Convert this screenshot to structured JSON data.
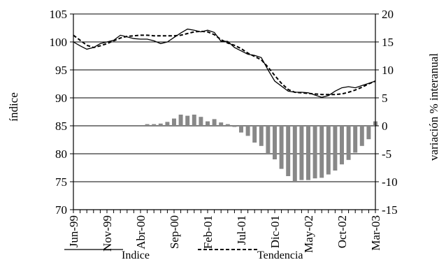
{
  "chart_data": {
    "type": "line",
    "title": "",
    "left_axis": {
      "label": "índice",
      "ylim": [
        70,
        105
      ],
      "ticks": [
        70,
        75,
        80,
        85,
        90,
        95,
        100,
        105
      ]
    },
    "right_axis": {
      "label": "variación % interanual",
      "ylim": [
        -15,
        20
      ],
      "ticks": [
        -15,
        -10,
        -5,
        0,
        5,
        10,
        15,
        20
      ]
    },
    "grid": true,
    "legend_position": "bottom",
    "x_tick_labels": [
      "Jun-99",
      "Nov-99",
      "Abr-00",
      "Sep-00",
      "Feb-01",
      "Jul-01",
      "Dic-01",
      "May-02",
      "Oct-02",
      "Mar-03"
    ],
    "months": [
      "Jun-99",
      "Jul-99",
      "Aug-99",
      "Sep-99",
      "Oct-99",
      "Nov-99",
      "Dec-99",
      "Jan-00",
      "Feb-00",
      "Mar-00",
      "Abr-00",
      "May-00",
      "Jun-00",
      "Jul-00",
      "Aug-00",
      "Sep-00",
      "Oct-00",
      "Nov-00",
      "Dec-00",
      "Jan-01",
      "Feb-01",
      "Mar-01",
      "Apr-01",
      "May-01",
      "Jun-01",
      "Jul-01",
      "Aug-01",
      "Sep-01",
      "Oct-01",
      "Nov-01",
      "Dic-01",
      "Jan-02",
      "Feb-02",
      "Mar-02",
      "Apr-02",
      "May-02",
      "Jun-02",
      "Jul-02",
      "Aug-02",
      "Sep-02",
      "Oct-02",
      "Nov-02",
      "Dec-02",
      "Jan-03",
      "Feb-03",
      "Mar-03"
    ],
    "series": [
      {
        "name": "Indice",
        "axis": "left",
        "style": "solid",
        "color": "#000000",
        "values": [
          100.0,
          99.3,
          98.7,
          99.0,
          99.7,
          100.0,
          100.3,
          101.2,
          100.9,
          100.6,
          100.5,
          100.5,
          100.2,
          99.7,
          100.0,
          100.8,
          101.6,
          102.3,
          102.1,
          101.8,
          102.1,
          101.7,
          100.1,
          100.1,
          99.0,
          98.4,
          97.8,
          97.6,
          97.2,
          95.0,
          93.0,
          92.1,
          91.2,
          91.0,
          91.0,
          90.9,
          90.5,
          90.1,
          90.4,
          91.2,
          91.8,
          92.0,
          91.8,
          92.2,
          92.6,
          93.0
        ]
      },
      {
        "name": "Tendencia",
        "axis": "left",
        "style": "dashed",
        "color": "#000000",
        "values": [
          101.2,
          100.3,
          99.4,
          99.0,
          99.3,
          99.7,
          100.2,
          100.7,
          101.0,
          101.1,
          101.2,
          101.2,
          101.1,
          101.1,
          101.1,
          101.1,
          101.2,
          101.5,
          101.8,
          101.9,
          101.8,
          101.3,
          100.4,
          99.8,
          99.4,
          98.8,
          98.0,
          97.4,
          96.8,
          95.5,
          94.0,
          92.6,
          91.5,
          91.0,
          90.9,
          90.8,
          90.7,
          90.6,
          90.6,
          90.6,
          90.7,
          91.0,
          91.4,
          91.9,
          92.5,
          93.0
        ]
      },
      {
        "name": "variación % interanual",
        "axis": "right",
        "type": "bar",
        "color": "#888888",
        "values": [
          null,
          null,
          null,
          null,
          null,
          null,
          null,
          null,
          null,
          null,
          null,
          0.3,
          0.3,
          0.4,
          0.7,
          1.3,
          2.0,
          1.8,
          2.0,
          1.6,
          0.8,
          1.2,
          0.6,
          0.3,
          -0.2,
          -1.2,
          -1.8,
          -3.0,
          -3.6,
          -5.0,
          -6.0,
          -7.7,
          -9.0,
          -10.0,
          -9.7,
          -9.7,
          -9.4,
          -9.3,
          -8.7,
          -8.0,
          -6.9,
          -6.1,
          -4.8,
          -3.6,
          -2.4,
          0.8
        ]
      }
    ]
  }
}
